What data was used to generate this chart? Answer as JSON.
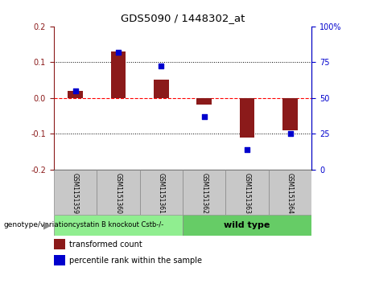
{
  "title": "GDS5090 / 1448302_at",
  "samples": [
    "GSM1151359",
    "GSM1151360",
    "GSM1151361",
    "GSM1151362",
    "GSM1151363",
    "GSM1151364"
  ],
  "red_bars": [
    0.02,
    0.13,
    0.05,
    -0.02,
    -0.11,
    -0.09
  ],
  "blue_dots_pct": [
    55,
    82,
    72,
    37,
    14,
    25
  ],
  "group1_label": "cystatin B knockout Cstb-/-",
  "group2_label": "wild type",
  "group1_color": "#90EE90",
  "group2_color": "#66CC66",
  "genotype_label": "genotype/variation",
  "legend_red": "transformed count",
  "legend_blue": "percentile rank within the sample",
  "ylim_left": [
    -0.2,
    0.2
  ],
  "ylim_right": [
    0,
    100
  ],
  "yticks_left": [
    -0.2,
    -0.1,
    0.0,
    0.1,
    0.2
  ],
  "yticks_right": [
    0,
    25,
    50,
    75,
    100
  ],
  "red_color": "#8B1A1A",
  "blue_color": "#0000CD",
  "bar_width": 0.35,
  "group1_samples": [
    0,
    1,
    2
  ],
  "group2_samples": [
    3,
    4,
    5
  ],
  "sample_box_color": "#C8C8C8",
  "fig_width": 4.61,
  "fig_height": 3.63,
  "dpi": 100
}
